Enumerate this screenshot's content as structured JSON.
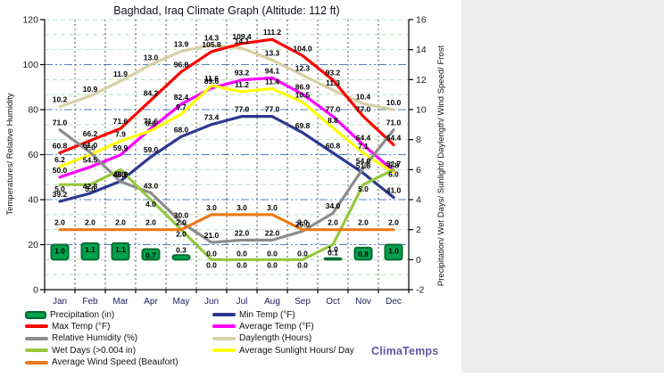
{
  "title": "Baghdad, Iraq Climate Graph (Altitude: 112 ft)",
  "watermark": "ClimaTemps",
  "months": [
    "Jan",
    "Feb",
    "Mar",
    "Apr",
    "May",
    "Jun",
    "Jul",
    "Aug",
    "Sep",
    "Oct",
    "Nov",
    "Dec"
  ],
  "left_axis": {
    "title": "Temperatures/ Relative Humidity",
    "ticks": [
      120,
      100,
      80,
      60,
      40,
      20,
      0
    ],
    "min": 0,
    "max": 120
  },
  "right_axis": {
    "title": "Precipitation/ Wet Days/ Sunlight/ Daylength/ Wind Speed/ Frost",
    "ticks": [
      16,
      14,
      12,
      10,
      8,
      6,
      4,
      2,
      0,
      -2
    ],
    "min": -2,
    "max": 16
  },
  "chart_data": {
    "type": "line",
    "title": "Baghdad, Iraq Climate Graph (Altitude: 112 ft)",
    "categories": [
      "Jan",
      "Feb",
      "Mar",
      "Apr",
      "May",
      "Jun",
      "Jul",
      "Aug",
      "Sep",
      "Oct",
      "Nov",
      "Dec"
    ],
    "grid": true,
    "legend_position": "bottom",
    "series": [
      {
        "name": "Precipitation (in)",
        "kind": "bar",
        "axis": "right",
        "color": "#00A24C",
        "border": "#006B2F",
        "values": [
          1.0,
          1.1,
          1.1,
          0.7,
          0.3,
          0.0,
          0.0,
          0.0,
          0.0,
          0.1,
          0.8,
          1.0
        ]
      },
      {
        "name": "Max Temp (°F)",
        "kind": "line",
        "axis": "left",
        "color": "#FF0000",
        "values": [
          60.8,
          66.2,
          71.6,
          84.2,
          96.8,
          105.8,
          109.4,
          111.2,
          104.0,
          93.2,
          77.0,
          64.4
        ]
      },
      {
        "name": "Min Temp (°F)",
        "kind": "line",
        "axis": "left",
        "color": "#2B3990",
        "values": [
          39.2,
          42.8,
          48.2,
          59.0,
          68.0,
          73.4,
          77.0,
          77.0,
          69.8,
          60.8,
          51.8,
          41.0
        ]
      },
      {
        "name": "Average Temp (°F)",
        "kind": "line",
        "axis": "left",
        "color": "#FF00FF",
        "values": [
          50.0,
          54.5,
          59.9,
          71.6,
          82.4,
          89.6,
          93.2,
          94.1,
          86.9,
          77.0,
          64.4,
          52.7
        ]
      },
      {
        "name": "Relative Humidity (%)",
        "kind": "line",
        "axis": "left",
        "color": "#8C8C8C",
        "values": [
          71.0,
          61.0,
          48.0,
          43.0,
          30.0,
          21.0,
          22.0,
          22.0,
          26.0,
          34.0,
          54.0,
          71.0
        ]
      },
      {
        "name": "Daylength (Hours)",
        "kind": "line",
        "axis": "right",
        "color": "#D6D0A4",
        "values": [
          10.2,
          10.9,
          11.9,
          13.0,
          13.9,
          14.3,
          14.1,
          13.3,
          12.3,
          11.3,
          10.4,
          10.0
        ]
      },
      {
        "name": "Average Sunlight Hours/ Day",
        "kind": "line",
        "axis": "right",
        "color": "#FFFF00",
        "values": [
          6.2,
          7.0,
          7.9,
          8.6,
          9.7,
          11.6,
          11.2,
          11.4,
          10.5,
          8.8,
          7.1,
          5.8
        ]
      },
      {
        "name": "Wet Days (>0.004 in)",
        "kind": "line",
        "axis": "right",
        "color": "#94C83D",
        "values": [
          5.0,
          5.0,
          6.0,
          4.0,
          2.0,
          0.0,
          0.0,
          0.0,
          0.0,
          1.0,
          5.0,
          6.0
        ]
      },
      {
        "name": "Average Wind Speed (Beaufort)",
        "kind": "line",
        "axis": "right",
        "color": "#EA7A18",
        "values": [
          2.0,
          2.0,
          2.0,
          2.0,
          2.0,
          3.0,
          3.0,
          3.0,
          2.0,
          2.0,
          2.0,
          2.0
        ]
      }
    ]
  },
  "legend": {
    "columns": [
      {
        "items": [
          {
            "label": "Precipitation (in)",
            "swatch": "bar",
            "color": "#00A24C"
          },
          {
            "label": "Max Temp (°F)",
            "swatch": "line",
            "color": "#FF0000"
          },
          {
            "label": "Relative Humidity (%)",
            "swatch": "line",
            "color": "#8C8C8C"
          },
          {
            "label": "Wet Days (>0.004 in)",
            "swatch": "line",
            "color": "#94C83D"
          },
          {
            "label": "Average Wind Speed (Beaufort)",
            "swatch": "line",
            "color": "#EA7A18"
          }
        ]
      },
      {
        "items": [
          {
            "label": "Min Temp (°F)",
            "swatch": "line",
            "color": "#2B3990"
          },
          {
            "label": "Average Temp (°F)",
            "swatch": "line",
            "color": "#FF00FF"
          },
          {
            "label": "Daylength (Hours)",
            "swatch": "line",
            "color": "#D6D0A4"
          },
          {
            "label": "Average Sunlight Hours/ Day",
            "swatch": "line",
            "color": "#FFFF00"
          }
        ]
      }
    ]
  },
  "colors": {
    "grid_green": "#b7dfb7",
    "grid_blue": "#4f81bd",
    "grid_vertical": "#555555",
    "axis": "#000000",
    "month_label": "#202060",
    "watermark": "#6456A5",
    "side_panel": "#ececec"
  }
}
